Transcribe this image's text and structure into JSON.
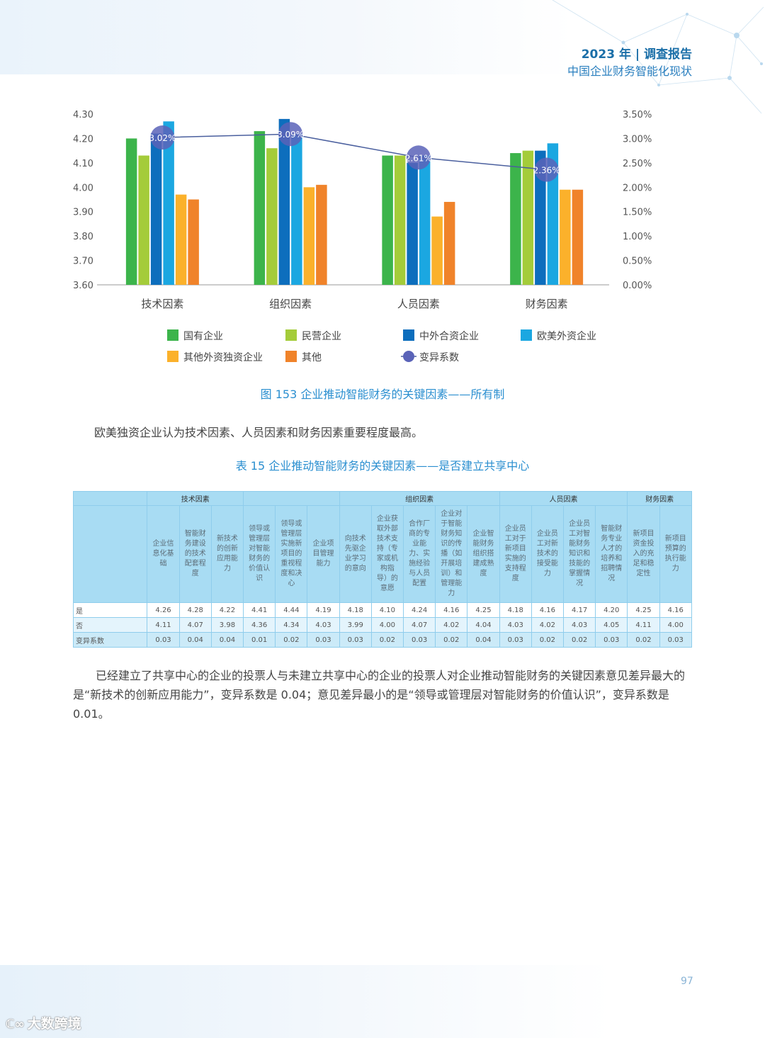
{
  "header": {
    "title": "2023 年 | 调查报告",
    "subtitle": "中国企业财务智能化现状"
  },
  "colors": {
    "state_owned": "#3cb44b",
    "private": "#a4cc3a",
    "sino_foreign": "#0d6ebd",
    "euro_american": "#1ba7e1",
    "other_foreign": "#fbb12b",
    "other": "#f0832a",
    "cv_line": "#4a5f9e",
    "cv_marker": "#5a63b8"
  },
  "chart_data": {
    "type": "bar",
    "categories": [
      "技术因素",
      "组织因素",
      "人员因素",
      "财务因素"
    ],
    "ylim": [
      3.6,
      4.3
    ],
    "yticks": [
      "4.30",
      "4.20",
      "4.10",
      "4.00",
      "3.90",
      "3.80",
      "3.70",
      "3.60"
    ],
    "y2lim": [
      0.0,
      3.5
    ],
    "y2ticks": [
      "3.50%",
      "3.00%",
      "2.50%",
      "2.00%",
      "1.50%",
      "1.00%",
      "0.50%",
      "0.00%"
    ],
    "series": [
      {
        "name": "国有企业",
        "values": [
          4.2,
          4.23,
          4.13,
          4.14
        ]
      },
      {
        "name": "民营企业",
        "values": [
          4.13,
          4.16,
          4.13,
          4.15
        ]
      },
      {
        "name": "中外合资企业",
        "values": [
          4.22,
          4.28,
          4.1,
          4.15
        ]
      },
      {
        "name": "欧美外资企业",
        "values": [
          4.27,
          4.22,
          4.13,
          4.18
        ]
      },
      {
        "name": "其他外资独资企业",
        "values": [
          3.97,
          4.0,
          3.88,
          3.99
        ]
      },
      {
        "name": "其他",
        "values": [
          3.95,
          4.01,
          3.94,
          3.99
        ]
      }
    ],
    "line_series": {
      "name": "变异系数",
      "values": [
        3.02,
        3.09,
        2.61,
        2.36
      ],
      "labels": [
        "3.02%",
        "3.09%",
        "2.61%",
        "2.36%"
      ]
    },
    "legend_position": "bottom"
  },
  "figure_caption": "图 153  企业推动智能财务的关键因素——所有制",
  "paragraph1": "欧美独资企业认为技术因素、人员因素和财务因素重要程度最高。",
  "table_caption": "表 15  企业推动智能财务的关键因素——是否建立共享中心",
  "table": {
    "groups": [
      "技术因素",
      "组织因素",
      "人员因素",
      "财务因素"
    ],
    "headers": [
      "企业信息化基础",
      "智能财务建设的技术配套程度",
      "新技术的创新应用能力",
      "领导或管理层对智能财务的价值认识",
      "领导或管理层实施新项目的重视程度和决心",
      "企业项目管理能力",
      "向技术先驱企业学习的意向",
      "企业获取外部技术支持（专家或机构指导）的意愿",
      "合作厂商的专业能力、实施经验与人员配置",
      "企业对于智能财务知识的传播（如开展培训）和管理能力",
      "企业智能财务组织搭建成熟度",
      "企业员工对于新项目实施的支持程度",
      "企业员工对新技术的接受能力",
      "企业员工对智能财务知识和技能的掌握情况",
      "智能财务专业人才的培养和招聘情况",
      "新项目资金投入的充足和稳定性",
      "新项目预算的执行能力"
    ],
    "rows": [
      {
        "label": "是",
        "values": [
          "4.26",
          "4.28",
          "4.22",
          "4.41",
          "4.44",
          "4.19",
          "4.18",
          "4.10",
          "4.24",
          "4.16",
          "4.25",
          "4.18",
          "4.16",
          "4.17",
          "4.20",
          "4.25",
          "4.16"
        ]
      },
      {
        "label": "否",
        "values": [
          "4.11",
          "4.07",
          "3.98",
          "4.36",
          "4.34",
          "4.03",
          "3.99",
          "4.00",
          "4.07",
          "4.02",
          "4.04",
          "4.03",
          "4.02",
          "4.03",
          "4.05",
          "4.11",
          "4.00"
        ]
      },
      {
        "label": "变异系数",
        "values": [
          "0.03",
          "0.04",
          "0.04",
          "0.01",
          "0.02",
          "0.03",
          "0.03",
          "0.02",
          "0.03",
          "0.02",
          "0.04",
          "0.03",
          "0.02",
          "0.02",
          "0.03",
          "0.02",
          "0.03"
        ]
      }
    ]
  },
  "paragraph2": "已经建立了共享中心的企业的投票人与未建立共享中心的企业的投票人对企业推动智能财务的关键因素意见差异最大的是“新技术的创新应用能力”，变异系数是 0.04；意见差异最小的是“领导或管理层对智能财务的价值认识”，变异系数是 0.01。",
  "page_number": "97",
  "watermark_logo": "大数跨境"
}
